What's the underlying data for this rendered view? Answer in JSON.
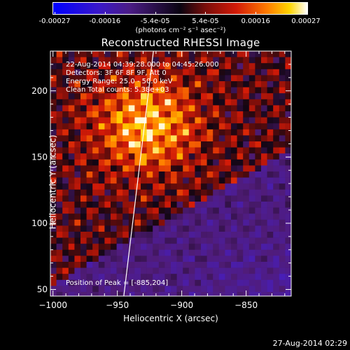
{
  "colorbar": {
    "ticks": [
      "-0.00027",
      "-0.00016",
      "-5.4e-05",
      "5.4e-05",
      "0.00016",
      "0.00027"
    ],
    "unit_label": "(photons cm⁻² s⁻¹ asec⁻²)"
  },
  "chart_data": {
    "type": "heatmap",
    "title": "Reconstructed RHESSI Image",
    "xlabel": "Heliocentric X (arcsec)",
    "ylabel": "Heliocentric Y (arcsec)",
    "xlim": [
      -1002,
      -815
    ],
    "ylim": [
      45,
      230
    ],
    "xticks": [
      -1000,
      -950,
      -900,
      -850
    ],
    "yticks": [
      50,
      100,
      150,
      200
    ],
    "color_range": [
      -0.00027,
      0.00027
    ],
    "annotations": [
      "22-Aug-2014 04:39:28.000 to 04:45:26.000",
      "Detectors: 3F 6F 8F 9F, Att 0",
      "Energy Range: 25.0 - 50.0 keV",
      "Clean    Total counts: 5.38e+03"
    ],
    "peak_label": "Position of Peak = [-885,204]",
    "peak": [
      -885,
      204
    ],
    "limb": [
      [
        -945,
        45
      ],
      [
        -922,
        230
      ]
    ]
  },
  "footer_date": "27-Aug-2014 02:29"
}
